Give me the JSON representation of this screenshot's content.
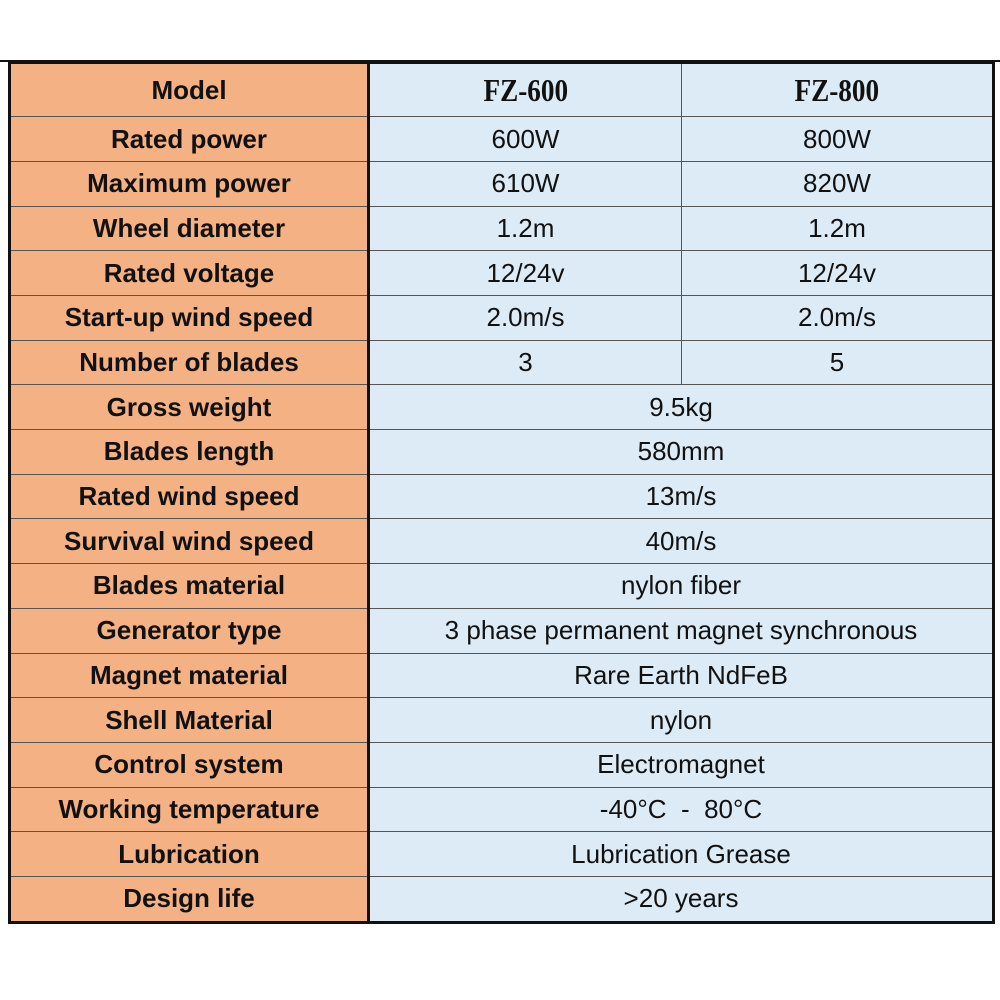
{
  "table": {
    "header": [
      "Model",
      "FZ-600",
      "FZ-800"
    ],
    "rows": [
      [
        "Rated power",
        "600W",
        "800W"
      ],
      [
        "Maximum power",
        "610W",
        "820W"
      ],
      [
        "Wheel diameter",
        "1.2m",
        "1.2m"
      ],
      [
        "Rated voltage",
        "12/24v",
        "12/24v"
      ],
      [
        "Start-up wind speed",
        "2.0m/s",
        "2.0m/s"
      ],
      [
        "Number of blades",
        "3",
        "5"
      ],
      [
        "Gross weight",
        "9.5kg"
      ],
      [
        "Blades length",
        "580mm"
      ],
      [
        "Rated wind speed",
        "13m/s"
      ],
      [
        "Survival wind speed",
        "40m/s"
      ],
      [
        "Blades material",
        "nylon fiber"
      ],
      [
        "Generator type",
        "3 phase permanent magnet synchronous"
      ],
      [
        "Magnet material",
        "Rare Earth NdFeB"
      ],
      [
        "Shell Material",
        "nylon"
      ],
      [
        "Control system",
        "Electromagnet"
      ],
      [
        "Working temperature",
        "-40°C  -  80°C"
      ],
      [
        "Lubrication",
        "Lubrication Grease"
      ],
      [
        "Design life",
        ">20 years"
      ]
    ]
  }
}
